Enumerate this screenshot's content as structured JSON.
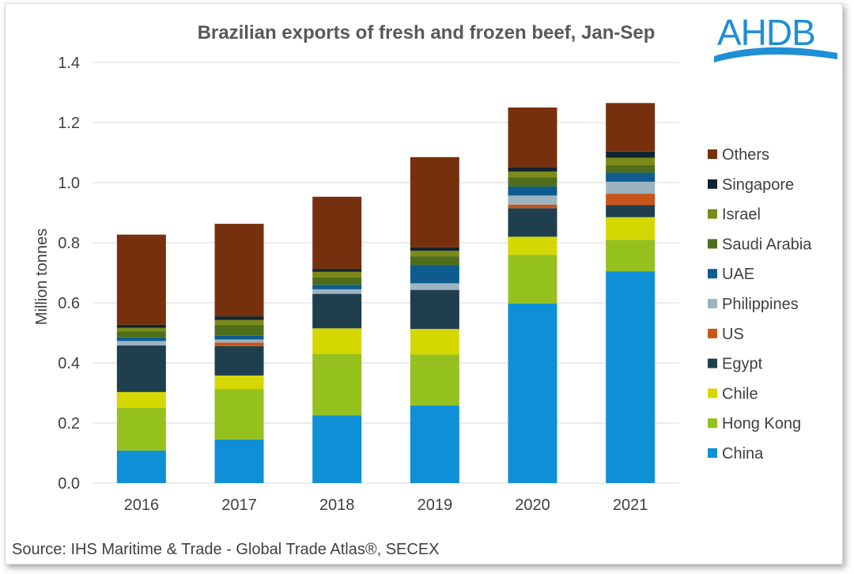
{
  "logo": {
    "text": "AHDB",
    "color": "#1f8fd6"
  },
  "source": "Source: IHS Maritime & Trade - Global Trade Atlas®, SECEX",
  "chart_data": {
    "type": "bar",
    "stacked": true,
    "title": "Brazilian exports of fresh and frozen beef, Jan-Sep",
    "xlabel": "",
    "ylabel": "Million tonnes",
    "ylim": [
      0,
      1.4
    ],
    "yticks": [
      "0.0",
      "0.2",
      "0.4",
      "0.6",
      "0.8",
      "1.0",
      "1.2",
      "1.4"
    ],
    "grid": true,
    "legend_position": "right",
    "categories": [
      "2016",
      "2017",
      "2018",
      "2019",
      "2020",
      "2021"
    ],
    "series": [
      {
        "name": "China",
        "color": "#0e8fd6",
        "values": [
          0.108,
          0.145,
          0.225,
          0.258,
          0.598,
          0.705
        ]
      },
      {
        "name": "Hong Kong",
        "color": "#95c11f",
        "values": [
          0.143,
          0.168,
          0.205,
          0.17,
          0.162,
          0.105
        ]
      },
      {
        "name": "Chile",
        "color": "#d4d800",
        "values": [
          0.052,
          0.045,
          0.085,
          0.085,
          0.06,
          0.075
        ]
      },
      {
        "name": "Egypt",
        "color": "#1f3f4f",
        "values": [
          0.155,
          0.098,
          0.115,
          0.13,
          0.095,
          0.04
        ]
      },
      {
        "name": "US",
        "color": "#c8551b",
        "values": [
          0.0,
          0.012,
          0.0,
          0.0,
          0.012,
          0.038
        ]
      },
      {
        "name": "Philippines",
        "color": "#9cb3c0",
        "values": [
          0.015,
          0.01,
          0.015,
          0.022,
          0.03,
          0.04
        ]
      },
      {
        "name": "UAE",
        "color": "#0e5c8f",
        "values": [
          0.012,
          0.012,
          0.015,
          0.06,
          0.03,
          0.03
        ]
      },
      {
        "name": "Saudi Arabia",
        "color": "#4e6e1c",
        "values": [
          0.02,
          0.035,
          0.025,
          0.03,
          0.03,
          0.025
        ]
      },
      {
        "name": "Israel",
        "color": "#7b8a18",
        "values": [
          0.012,
          0.018,
          0.018,
          0.018,
          0.02,
          0.025
        ]
      },
      {
        "name": "Singapore",
        "color": "#0f2530",
        "values": [
          0.01,
          0.012,
          0.01,
          0.012,
          0.015,
          0.02
        ]
      },
      {
        "name": "Others",
        "color": "#77300e",
        "values": [
          0.3,
          0.308,
          0.24,
          0.3,
          0.198,
          0.162
        ]
      }
    ]
  }
}
